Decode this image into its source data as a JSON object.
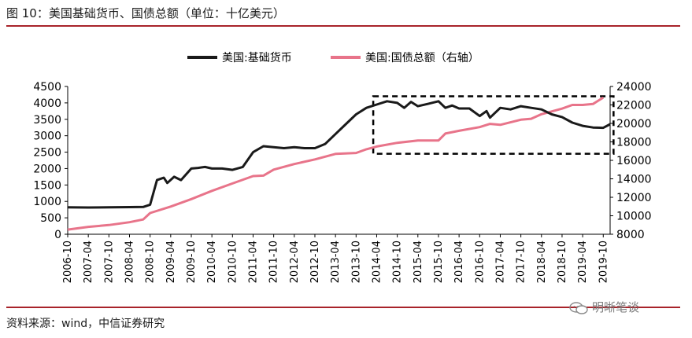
{
  "header": {
    "title": "图 10：美国基础货币、国债总额（单位：十亿美元）"
  },
  "footer": {
    "source": "资料来源：wind，中信证券研究",
    "watermark": "明晰笔谈",
    "watermark_icon": "wechat-icon"
  },
  "colors": {
    "rule": "#a8232a",
    "series1": "#1a1a1a",
    "series2": "#e8748a"
  },
  "chart_data": {
    "type": "line",
    "title": "",
    "xlabel": "",
    "ylabel": "",
    "y2label": "",
    "legend_position": "top-center",
    "grid": false,
    "x_range": [
      "2006-10",
      "2019-12"
    ],
    "ylim": [
      0,
      4500
    ],
    "y2lim": [
      8000,
      24000
    ],
    "y_ticks": [
      0,
      500,
      1000,
      1500,
      2000,
      2500,
      3000,
      3500,
      4000,
      4500
    ],
    "y2_ticks": [
      8000,
      10000,
      12000,
      14000,
      16000,
      18000,
      20000,
      22000,
      24000
    ],
    "x_ticks": [
      "2006-10",
      "2007-04",
      "2007-10",
      "2008-04",
      "2008-10",
      "2009-04",
      "2009-10",
      "2010-04",
      "2010-10",
      "2011-04",
      "2011-10",
      "2012-04",
      "2012-10",
      "2013-04",
      "2013-10",
      "2014-04",
      "2014-10",
      "2015-04",
      "2015-10",
      "2016-04",
      "2016-10",
      "2017-04",
      "2017-10",
      "2018-04",
      "2018-10",
      "2019-04",
      "2019-10"
    ],
    "series": [
      {
        "name": "美国:基础货币",
        "axis": "left",
        "points": [
          [
            "2006-10",
            820
          ],
          [
            "2007-04",
            815
          ],
          [
            "2007-10",
            820
          ],
          [
            "2008-04",
            825
          ],
          [
            "2008-08",
            830
          ],
          [
            "2008-10",
            900
          ],
          [
            "2008-12",
            1650
          ],
          [
            "2009-02",
            1720
          ],
          [
            "2009-03",
            1560
          ],
          [
            "2009-05",
            1750
          ],
          [
            "2009-07",
            1650
          ],
          [
            "2009-10",
            2000
          ],
          [
            "2009-12",
            2020
          ],
          [
            "2010-02",
            2050
          ],
          [
            "2010-04",
            2000
          ],
          [
            "2010-07",
            2000
          ],
          [
            "2010-10",
            1960
          ],
          [
            "2011-01",
            2050
          ],
          [
            "2011-04",
            2500
          ],
          [
            "2011-07",
            2680
          ],
          [
            "2011-10",
            2650
          ],
          [
            "2012-01",
            2620
          ],
          [
            "2012-04",
            2650
          ],
          [
            "2012-07",
            2620
          ],
          [
            "2012-10",
            2620
          ],
          [
            "2013-01",
            2750
          ],
          [
            "2013-04",
            3050
          ],
          [
            "2013-07",
            3350
          ],
          [
            "2013-10",
            3650
          ],
          [
            "2014-01",
            3850
          ],
          [
            "2014-04",
            3950
          ],
          [
            "2014-07",
            4050
          ],
          [
            "2014-10",
            4000
          ],
          [
            "2014-12",
            3850
          ],
          [
            "2015-02",
            4030
          ],
          [
            "2015-04",
            3900
          ],
          [
            "2015-07",
            3970
          ],
          [
            "2015-10",
            4050
          ],
          [
            "2015-12",
            3850
          ],
          [
            "2016-02",
            3920
          ],
          [
            "2016-04",
            3830
          ],
          [
            "2016-07",
            3830
          ],
          [
            "2016-10",
            3600
          ],
          [
            "2016-12",
            3750
          ],
          [
            "2017-01",
            3550
          ],
          [
            "2017-04",
            3850
          ],
          [
            "2017-07",
            3800
          ],
          [
            "2017-10",
            3900
          ],
          [
            "2018-01",
            3850
          ],
          [
            "2018-04",
            3800
          ],
          [
            "2018-07",
            3650
          ],
          [
            "2018-10",
            3570
          ],
          [
            "2019-01",
            3400
          ],
          [
            "2019-04",
            3300
          ],
          [
            "2019-07",
            3250
          ],
          [
            "2019-10",
            3240
          ],
          [
            "2019-12",
            3350
          ]
        ]
      },
      {
        "name": "美国:国债总额（右轴）",
        "axis": "right",
        "points": [
          [
            "2006-10",
            8500
          ],
          [
            "2007-04",
            8800
          ],
          [
            "2007-10",
            9000
          ],
          [
            "2008-04",
            9300
          ],
          [
            "2008-08",
            9600
          ],
          [
            "2008-10",
            10300
          ],
          [
            "2009-04",
            11000
          ],
          [
            "2009-10",
            11800
          ],
          [
            "2010-04",
            12700
          ],
          [
            "2010-10",
            13500
          ],
          [
            "2011-04",
            14300
          ],
          [
            "2011-07",
            14350
          ],
          [
            "2011-10",
            15000
          ],
          [
            "2012-04",
            15600
          ],
          [
            "2012-10",
            16100
          ],
          [
            "2013-04",
            16700
          ],
          [
            "2013-10",
            16800
          ],
          [
            "2014-01",
            17200
          ],
          [
            "2014-04",
            17500
          ],
          [
            "2014-10",
            17900
          ],
          [
            "2015-04",
            18150
          ],
          [
            "2015-10",
            18150
          ],
          [
            "2015-12",
            18900
          ],
          [
            "2016-04",
            19200
          ],
          [
            "2016-10",
            19600
          ],
          [
            "2017-01",
            19950
          ],
          [
            "2017-04",
            19850
          ],
          [
            "2017-10",
            20400
          ],
          [
            "2018-01",
            20500
          ],
          [
            "2018-04",
            21000
          ],
          [
            "2018-10",
            21600
          ],
          [
            "2019-01",
            22000
          ],
          [
            "2019-04",
            22000
          ],
          [
            "2019-07",
            22100
          ],
          [
            "2019-10",
            22800
          ]
        ]
      }
    ],
    "annotations": [
      {
        "type": "dashed-box",
        "x_start": "2014-03",
        "x_end": "2020-01",
        "y_min": 2450,
        "y_max": 4200
      }
    ]
  }
}
